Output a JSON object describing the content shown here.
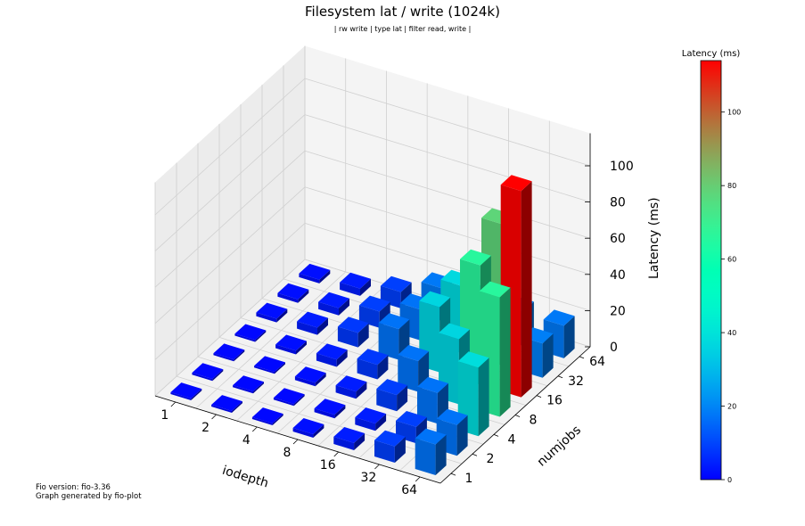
{
  "chart_data": {
    "type": "bar3d",
    "title": "Filesystem lat / write (1024k)",
    "subtitle": "| rw write | type lat | filter read, write |",
    "xlabel": "iodepth",
    "ylabel": "numjobs",
    "zlabel": "Latency (ms)",
    "x": [
      "1",
      "2",
      "4",
      "8",
      "16",
      "32",
      "64"
    ],
    "y": [
      "1",
      "2",
      "4",
      "8",
      "16",
      "32",
      "64"
    ],
    "z_ticks": [
      "0",
      "20",
      "40",
      "60",
      "80",
      "100"
    ],
    "zlim": [
      0,
      115
    ],
    "values": [
      [
        1,
        1,
        1,
        2,
        4,
        9,
        17
      ],
      [
        1,
        1,
        1,
        2,
        4,
        9,
        17
      ],
      [
        1,
        1,
        2,
        4,
        9,
        17,
        38
      ],
      [
        1,
        2,
        4,
        8,
        17,
        36,
        66
      ],
      [
        2,
        4,
        8,
        17,
        36,
        66,
        114
      ],
      [
        2,
        4,
        9,
        17,
        37,
        78,
        19
      ],
      [
        2,
        4,
        9,
        18,
        19,
        19,
        18
      ]
    ],
    "colorbar": {
      "label": "Latency (ms)",
      "ticks": [
        "0",
        "20",
        "40",
        "60",
        "80",
        "100"
      ],
      "min": 0,
      "max": 114,
      "colormap": "rainbow"
    },
    "footer": [
      "Fio version: fio-3.36",
      "Graph generated by fio-plot"
    ]
  }
}
